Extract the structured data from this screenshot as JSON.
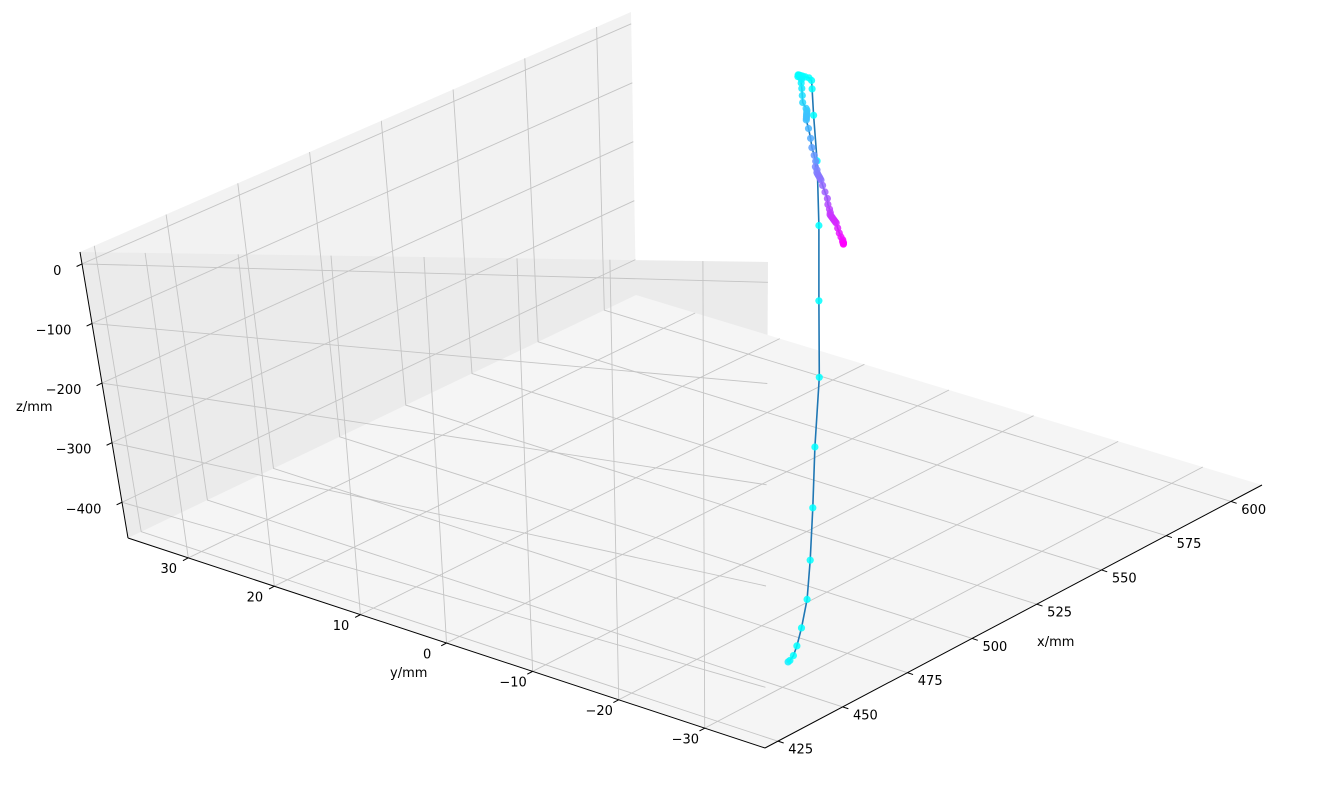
{
  "chart_data": {
    "type": "scatter3d",
    "title": "",
    "xlabel": "x/mm",
    "ylabel": "y/mm",
    "zlabel": "z/mm",
    "xlim": [
      420,
      612
    ],
    "ylim": [
      -37,
      37
    ],
    "zlim": [
      -460,
      20
    ],
    "xticks": [
      425,
      450,
      475,
      500,
      525,
      550,
      575,
      600
    ],
    "yticks": [
      -30,
      -20,
      -10,
      0,
      10,
      20,
      30
    ],
    "zticks": [
      -400,
      -300,
      -200,
      -100,
      0
    ],
    "xtick_labels": [
      "425",
      "450",
      "475",
      "500",
      "525",
      "550",
      "575",
      "600"
    ],
    "ytick_labels": [
      "−30",
      "−20",
      "−10",
      "0",
      "10",
      "20",
      "30"
    ],
    "ztick_labels": [
      "−400",
      "−300",
      "−200",
      "−100",
      "0"
    ],
    "grid": true,
    "line_color": "#1f77b4",
    "colormap": "cool",
    "colormap_colors": [
      "#00ffff",
      "#ff00ff"
    ],
    "marker_colormap_index": [
      0.08,
      0.02,
      0.0,
      0.0,
      0.0,
      0.0,
      0.0,
      0.0,
      0.0,
      0.0,
      0.0,
      0.0,
      0.0,
      0.0,
      0.0,
      0.0,
      0.0,
      0.0,
      0.0,
      0.0,
      0.0,
      0.0,
      0.0,
      0.0,
      0.01,
      0.03,
      0.05,
      0.08,
      0.12,
      0.15,
      0.19,
      0.2,
      0.21,
      0.22,
      0.23,
      0.24,
      0.24,
      0.25,
      0.29,
      0.33,
      0.37,
      0.41,
      0.44,
      0.47,
      0.48,
      0.5,
      0.51,
      0.52,
      0.53,
      0.54,
      0.55,
      0.59,
      0.63,
      0.67,
      0.71,
      0.74,
      0.76,
      0.77,
      0.78,
      0.79,
      0.8,
      0.81,
      0.82,
      0.83,
      0.84,
      0.88,
      0.91,
      0.94,
      0.96,
      0.97,
      0.98,
      0.99,
      1.0
    ],
    "points": {
      "x": [
        436,
        437,
        439,
        442,
        447,
        455,
        465,
        479,
        496,
        517,
        541,
        565,
        585,
        598,
        606,
        609,
        610,
        610,
        610,
        610,
        610,
        610,
        610,
        609,
        609,
        608,
        606,
        603,
        599,
        595,
        592,
        591,
        590,
        589,
        588,
        587,
        586,
        585,
        580,
        574,
        568,
        563,
        559,
        555,
        553,
        551,
        550,
        549,
        548,
        547,
        546,
        542,
        537,
        532,
        527,
        523,
        520,
        518,
        517,
        516,
        515,
        514,
        513,
        512,
        511,
        506,
        501,
        497,
        494,
        492,
        491,
        490,
        489
      ],
      "y": [
        -34.8,
        -34.7,
        -34.5,
        -34.0,
        -33.0,
        -31.2,
        -28.5,
        -24.5,
        -19.5,
        -13.5,
        -6.0,
        1.5,
        8.0,
        12.5,
        15.2,
        16.2,
        16.8,
        17.2,
        17.5,
        17.7,
        17.9,
        18.0,
        17.9,
        17.7,
        17.5,
        17.0,
        16.4,
        15.4,
        14.1,
        12.8,
        11.5,
        11.1,
        10.8,
        10.5,
        10.2,
        9.9,
        9.6,
        9.3,
        7.5,
        5.4,
        3.4,
        1.6,
        0.2,
        -1.0,
        -1.8,
        -2.4,
        -2.8,
        -3.2,
        -3.6,
        -4.0,
        -4.4,
        -5.8,
        -7.6,
        -9.4,
        -11.0,
        -12.4,
        -13.4,
        -14.0,
        -14.4,
        -14.8,
        -15.2,
        -15.6,
        -16.0,
        -16.4,
        -16.8,
        -18.5,
        -20.2,
        -21.6,
        -22.7,
        -23.3,
        -23.7,
        -24.0,
        -24.3
      ],
      "z": [
        -400,
        -400,
        -398,
        -393,
        -383,
        -367,
        -343,
        -310,
        -270,
        -222,
        -168,
        -112,
        -62,
        -25,
        -5,
        0,
        0,
        0,
        0,
        0,
        0,
        0,
        0,
        0,
        0,
        0,
        0,
        0,
        0,
        0,
        0,
        0,
        0,
        0,
        0,
        0,
        0,
        0,
        0,
        0,
        0,
        0,
        0,
        0,
        0,
        0,
        0,
        0,
        0,
        0,
        0,
        0,
        0,
        0,
        0,
        0,
        0,
        0,
        0,
        0,
        0,
        0,
        0,
        0,
        0,
        0,
        0,
        0,
        0,
        0,
        0,
        0,
        0
      ]
    }
  }
}
